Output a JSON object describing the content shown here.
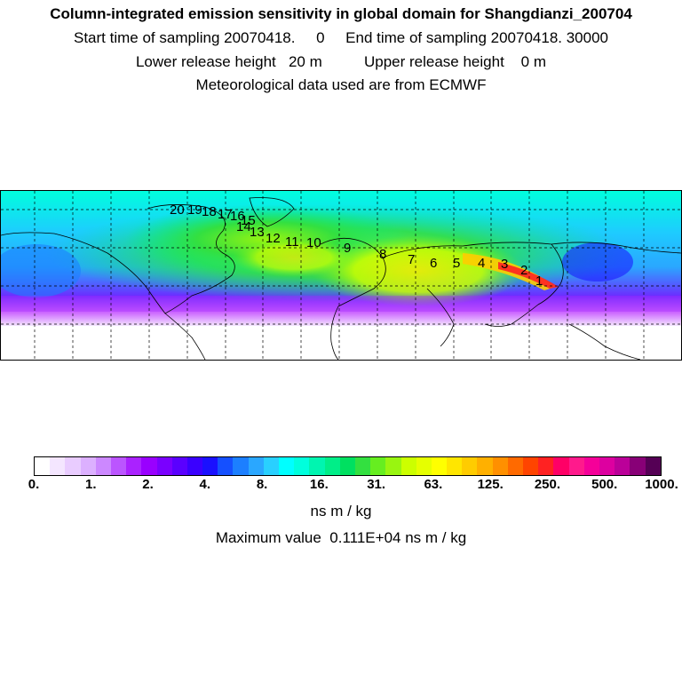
{
  "header": {
    "title": "Column-integrated emission sensitivity in global domain for Shangdianzi_200704",
    "line2": "Start time of sampling 20070418.     0     End time of sampling 20070418. 30000",
    "line3": "Lower release height   20 m          Upper release height    0 m",
    "line4": "Meteorological data used are from ECMWF"
  },
  "map": {
    "trajectory_labels": [
      "1",
      "2",
      "3",
      "4",
      "5",
      "6",
      "7",
      "8",
      "9",
      "10",
      "11",
      "12",
      "13",
      "14",
      "15",
      "16",
      "17",
      "18",
      "19",
      "20"
    ]
  },
  "colorbar": {
    "tick_labels": [
      "0.",
      "1.",
      "2.",
      "4.",
      "8.",
      "16.",
      "31.",
      "63.",
      "125.",
      "250.",
      "500.",
      "1000."
    ],
    "units": "ns m / kg",
    "colors": [
      "#ffffff",
      "#f4e6ff",
      "#e9ccff",
      "#dcb0ff",
      "#cc88ff",
      "#bb55ff",
      "#aa22ff",
      "#9900ff",
      "#7a00ff",
      "#5a00ff",
      "#3a00ff",
      "#1a10ff",
      "#1550ff",
      "#1c7fff",
      "#2aa7ff",
      "#29d0ff",
      "#00ffff",
      "#00ffdd",
      "#00f5b0",
      "#00ee88",
      "#00e060",
      "#33e040",
      "#66ee20",
      "#99f510",
      "#ccff00",
      "#e6ff00",
      "#ffff00",
      "#ffe600",
      "#ffcc00",
      "#ffb000",
      "#ff9000",
      "#ff6a00",
      "#ff4400",
      "#ff2222",
      "#ff0066",
      "#ff1a8c",
      "#f50099",
      "#dd00a0",
      "#bb0099",
      "#880077",
      "#550055"
    ]
  },
  "max_value_label": "Maximum value  0.111E+04 ns m / kg"
}
